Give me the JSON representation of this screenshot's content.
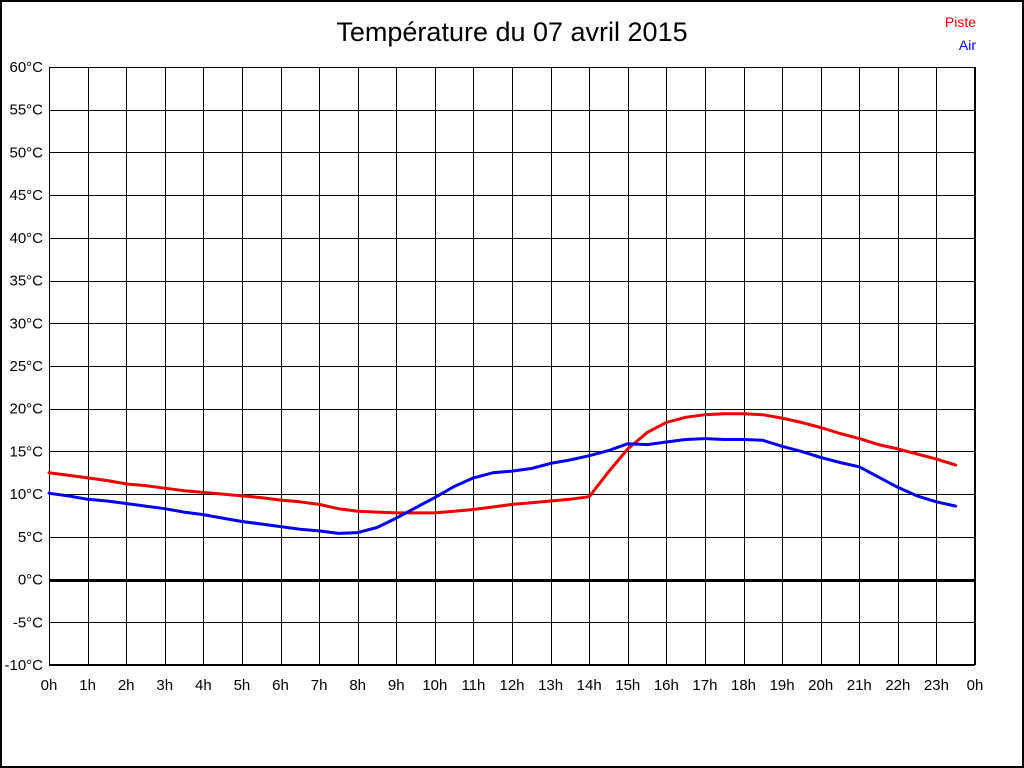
{
  "page": {
    "background": "#ffffff",
    "frame_color": "#000000"
  },
  "chart_data": {
    "type": "line",
    "title": "Température du 07 avril 2015",
    "xlabel": "",
    "ylabel": "",
    "ylim": [
      -10,
      60
    ],
    "xlim_hours": [
      0,
      24
    ],
    "grid": true,
    "grid_color": "#000000",
    "zero_line": {
      "value": 0,
      "color": "#000000",
      "width": 3
    },
    "y_ticks": [
      60,
      55,
      50,
      45,
      40,
      35,
      30,
      25,
      20,
      15,
      10,
      5,
      0,
      -5,
      -10
    ],
    "y_tick_labels": [
      "60°C",
      "55°C",
      "50°C",
      "45°C",
      "40°C",
      "35°C",
      "30°C",
      "25°C",
      "20°C",
      "15°C",
      "10°C",
      "5°C",
      "0°C",
      "-5°C",
      "-10°C"
    ],
    "x_tick_hours": [
      0,
      1,
      2,
      3,
      4,
      5,
      6,
      7,
      8,
      9,
      10,
      11,
      12,
      13,
      14,
      15,
      16,
      17,
      18,
      19,
      20,
      21,
      22,
      23,
      24
    ],
    "x_tick_labels": [
      "0h",
      "1h",
      "2h",
      "3h",
      "4h",
      "5h",
      "6h",
      "7h",
      "8h",
      "9h",
      "10h",
      "11h",
      "12h",
      "13h",
      "14h",
      "15h",
      "16h",
      "17h",
      "18h",
      "19h",
      "20h",
      "21h",
      "22h",
      "23h",
      "0h"
    ],
    "legend": {
      "position": "top-right",
      "entries": [
        {
          "label": "Piste",
          "color": "#ee0000"
        },
        {
          "label": "Air",
          "color": "#0000ee"
        }
      ]
    },
    "x_hours": [
      0,
      0.5,
      1,
      1.5,
      2,
      2.5,
      3,
      3.5,
      4,
      4.5,
      5,
      5.5,
      6,
      6.5,
      7,
      7.5,
      8,
      8.5,
      9,
      9.5,
      10,
      10.5,
      11,
      11.5,
      12,
      12.5,
      13,
      13.5,
      14,
      14.5,
      15,
      15.5,
      16,
      16.5,
      17,
      17.5,
      18,
      18.5,
      19,
      19.5,
      20,
      20.5,
      21,
      21.5,
      22,
      22.5,
      23,
      23.5
    ],
    "series": [
      {
        "name": "Piste",
        "color": "#ee0000",
        "line_width": 3,
        "values": [
          12.5,
          12.2,
          11.9,
          11.6,
          11.2,
          11.0,
          10.7,
          10.4,
          10.2,
          10.0,
          9.8,
          9.6,
          9.3,
          9.1,
          8.8,
          8.3,
          8.0,
          7.9,
          7.8,
          7.8,
          7.8,
          8.0,
          8.2,
          8.5,
          8.8,
          9.0,
          9.2,
          9.4,
          9.7,
          12.6,
          15.3,
          17.2,
          18.4,
          19.0,
          19.3,
          19.4,
          19.4,
          19.3,
          18.9,
          18.4,
          17.8,
          17.1,
          16.5,
          15.8,
          15.3,
          14.7,
          14.1,
          13.4
        ]
      },
      {
        "name": "Air",
        "color": "#0000ee",
        "line_width": 3,
        "values": [
          10.1,
          9.8,
          9.4,
          9.2,
          8.9,
          8.6,
          8.3,
          7.9,
          7.6,
          7.2,
          6.8,
          6.5,
          6.2,
          5.9,
          5.7,
          5.4,
          5.5,
          6.1,
          7.2,
          8.4,
          9.6,
          10.9,
          11.9,
          12.5,
          12.7,
          13.0,
          13.6,
          14.0,
          14.5,
          15.1,
          15.9,
          15.8,
          16.1,
          16.4,
          16.5,
          16.4,
          16.4,
          16.3,
          15.6,
          15.0,
          14.3,
          13.7,
          13.2,
          12.0,
          10.8,
          9.8,
          9.1,
          8.6
        ]
      }
    ]
  }
}
